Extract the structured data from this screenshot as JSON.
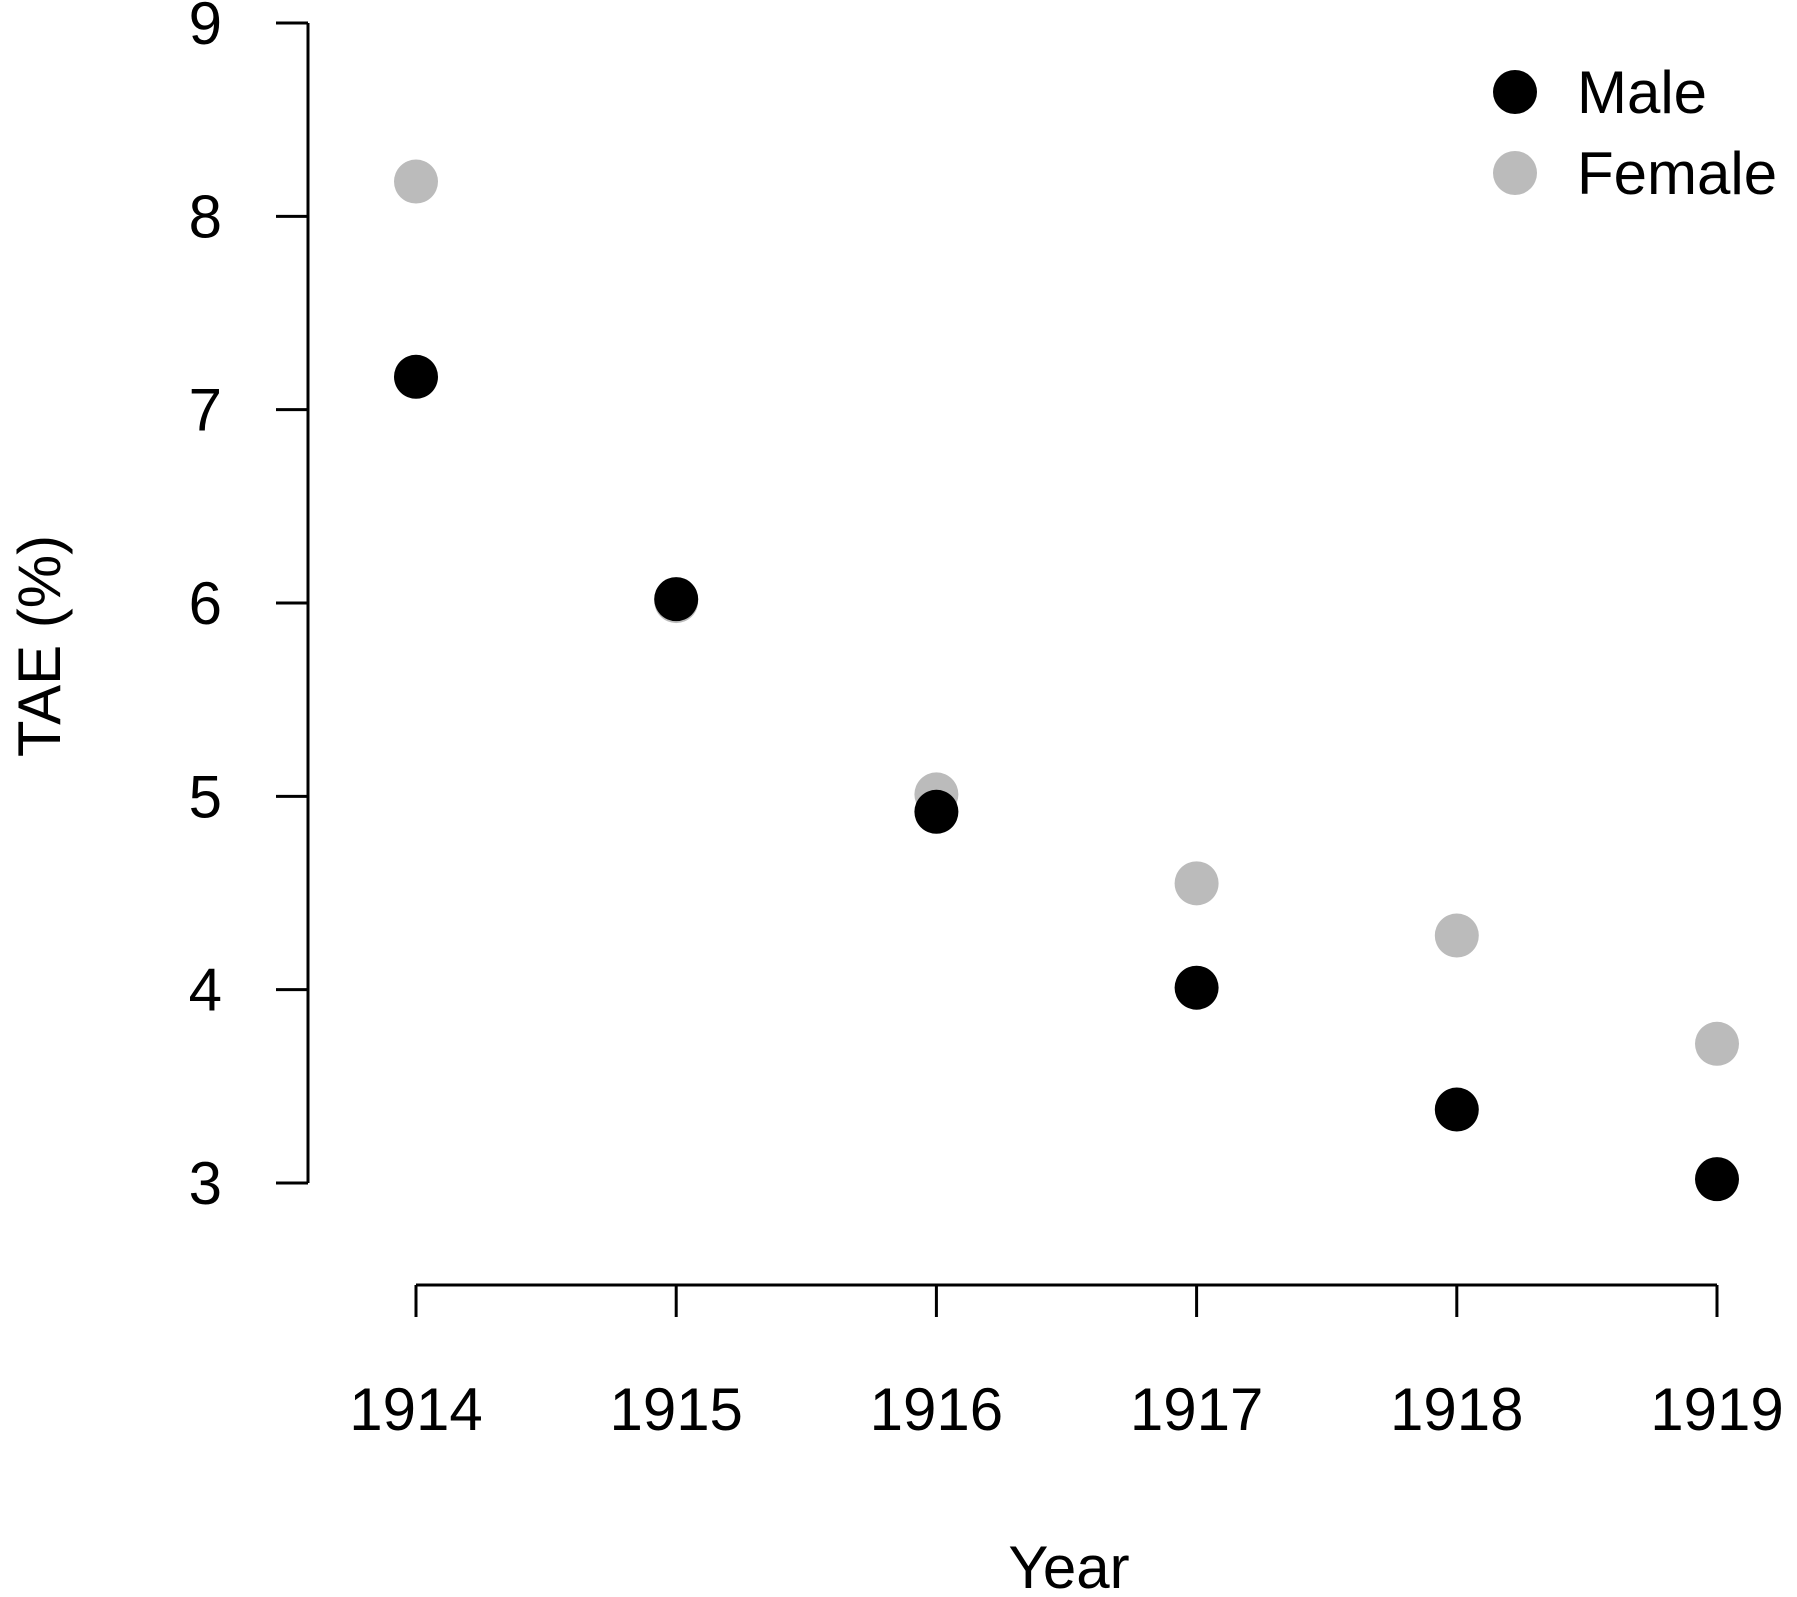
{
  "chart_data": {
    "type": "scatter",
    "xlabel": "Year",
    "ylabel": "TAE (%)",
    "x": [
      1914,
      1915,
      1916,
      1917,
      1918,
      1919
    ],
    "xticks": [
      "1914",
      "1915",
      "1916",
      "1917",
      "1918",
      "1919"
    ],
    "yticks": [
      "3",
      "4",
      "5",
      "6",
      "7",
      "8",
      "9"
    ],
    "ylim": [
      3,
      9
    ],
    "xlim": [
      1914,
      1919
    ],
    "grid": false,
    "legend_position": "top-right",
    "series": [
      {
        "name": "Female",
        "color": "#bbbbbb",
        "values": [
          8.18,
          6.01,
          5.01,
          4.55,
          4.28,
          3.72
        ]
      },
      {
        "name": "Male",
        "color": "#000000",
        "values": [
          7.17,
          6.02,
          4.92,
          4.01,
          3.38,
          3.02
        ]
      }
    ],
    "legend": [
      {
        "label": "Male",
        "color": "#000000"
      },
      {
        "label": "Female",
        "color": "#bbbbbb"
      }
    ]
  }
}
